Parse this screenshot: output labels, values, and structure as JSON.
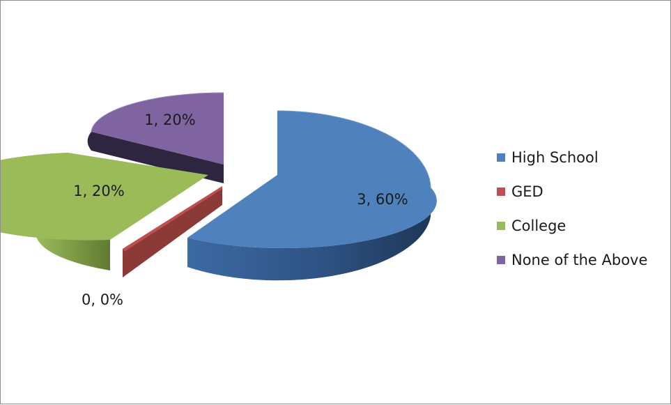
{
  "chart_data": {
    "type": "pie",
    "title": "",
    "categories": [
      "High School",
      "GED",
      "College",
      "None of the Above"
    ],
    "values": [
      3,
      0,
      1,
      1
    ],
    "percent_labels": [
      "60%",
      "0%",
      "20%",
      "20%"
    ],
    "data_labels": [
      "3, 60%",
      "0, 0%",
      "1, 20%",
      "1, 20%"
    ],
    "colors": [
      "#4f81bd",
      "#c0504d",
      "#9bbb59",
      "#8064a2"
    ],
    "exploded": true,
    "three_d": true,
    "legend_position": "right"
  }
}
